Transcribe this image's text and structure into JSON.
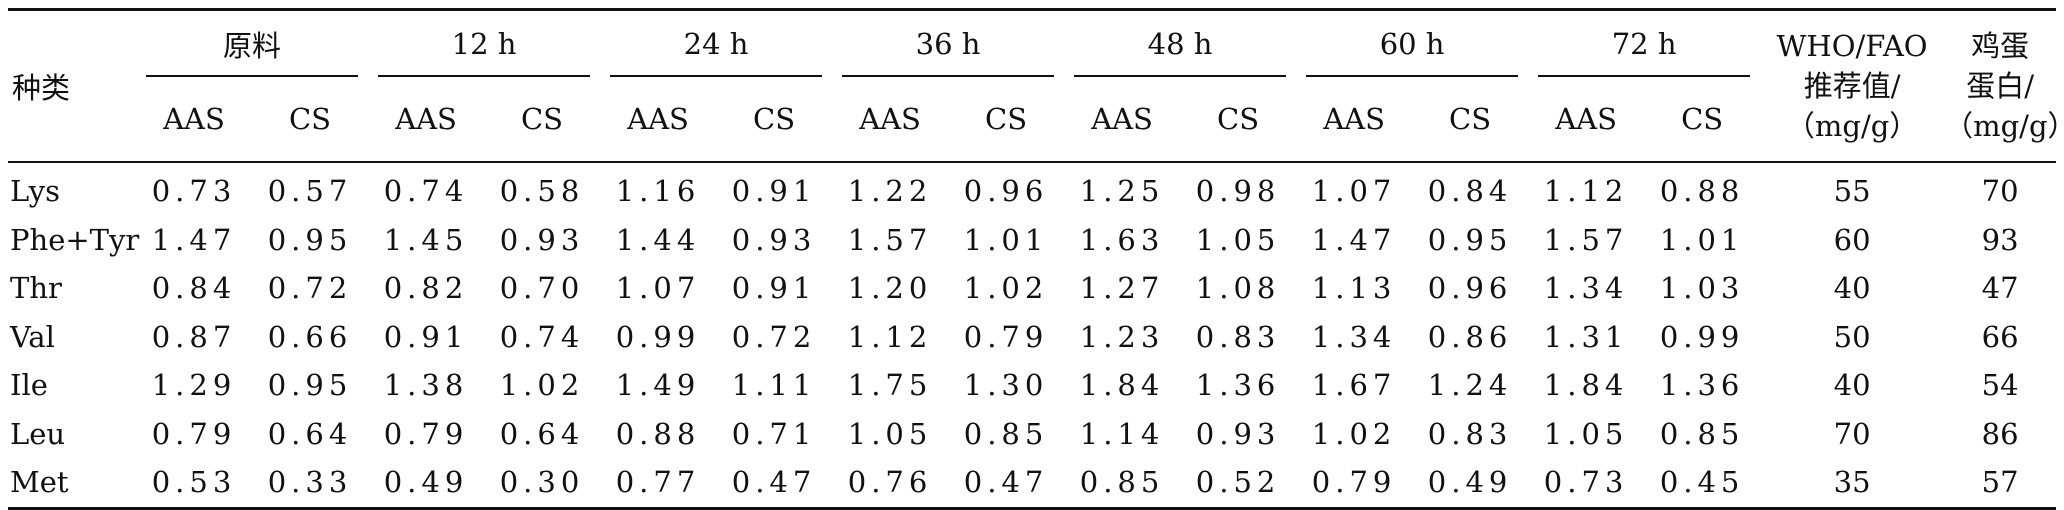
{
  "header": {
    "species": "种类",
    "groups": [
      "原料",
      "12 h",
      "24 h",
      "36 h",
      "48 h",
      "60 h",
      "72 h"
    ],
    "sub": [
      "AAS",
      "CS"
    ],
    "who_lines": [
      "WHO/FAO",
      "推荐值/",
      "（mg/g）"
    ],
    "egg_lines": [
      "鸡蛋",
      "蛋白/",
      "（mg/g）"
    ]
  },
  "rows": [
    {
      "name": "Lys",
      "v": [
        "0.73",
        "0.57",
        "0.74",
        "0.58",
        "1.16",
        "0.91",
        "1.22",
        "0.96",
        "1.25",
        "0.98",
        "1.07",
        "0.84",
        "1.12",
        "0.88"
      ],
      "who": "55",
      "egg": "70"
    },
    {
      "name": "Phe+Tyr",
      "v": [
        "1.47",
        "0.95",
        "1.45",
        "0.93",
        "1.44",
        "0.93",
        "1.57",
        "1.01",
        "1.63",
        "1.05",
        "1.47",
        "0.95",
        "1.57",
        "1.01"
      ],
      "who": "60",
      "egg": "93"
    },
    {
      "name": "Thr",
      "v": [
        "0.84",
        "0.72",
        "0.82",
        "0.70",
        "1.07",
        "0.91",
        "1.20",
        "1.02",
        "1.27",
        "1.08",
        "1.13",
        "0.96",
        "1.34",
        "1.03"
      ],
      "who": "40",
      "egg": "47"
    },
    {
      "name": "Val",
      "v": [
        "0.87",
        "0.66",
        "0.91",
        "0.74",
        "0.99",
        "0.72",
        "1.12",
        "0.79",
        "1.23",
        "0.83",
        "1.34",
        "0.86",
        "1.31",
        "0.99"
      ],
      "who": "50",
      "egg": "66"
    },
    {
      "name": "Ile",
      "v": [
        "1.29",
        "0.95",
        "1.38",
        "1.02",
        "1.49",
        "1.11",
        "1.75",
        "1.30",
        "1.84",
        "1.36",
        "1.67",
        "1.24",
        "1.84",
        "1.36"
      ],
      "who": "40",
      "egg": "54"
    },
    {
      "name": "Leu",
      "v": [
        "0.79",
        "0.64",
        "0.79",
        "0.64",
        "0.88",
        "0.71",
        "1.05",
        "0.85",
        "1.14",
        "0.93",
        "1.02",
        "0.83",
        "1.05",
        "0.85"
      ],
      "who": "70",
      "egg": "86"
    },
    {
      "name": "Met",
      "v": [
        "0.53",
        "0.33",
        "0.49",
        "0.30",
        "0.77",
        "0.47",
        "0.76",
        "0.47",
        "0.85",
        "0.52",
        "0.79",
        "0.49",
        "0.73",
        "0.45"
      ],
      "who": "35",
      "egg": "57"
    }
  ]
}
